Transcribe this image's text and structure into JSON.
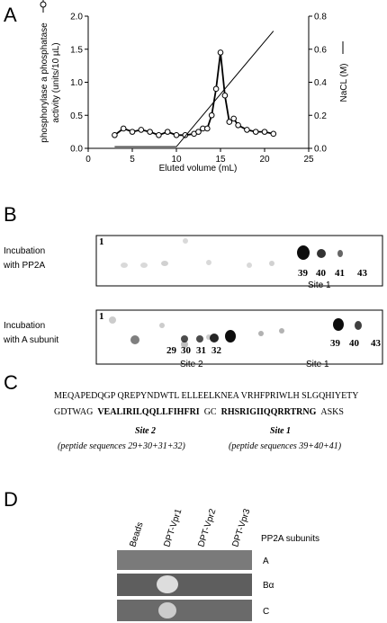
{
  "panel_labels": [
    "A",
    "B",
    "C",
    "D"
  ],
  "chart_data": {
    "type": "line",
    "x_label": "Eluted volume (mL)",
    "y_label": [
      "phosphorylase a phosphatase",
      "activity (units/10 µL)"
    ],
    "y2_label": "NaCL (M)",
    "xlim": [
      0,
      25
    ],
    "xticks": [
      0,
      5,
      10,
      15,
      20,
      25
    ],
    "ylim": [
      0,
      2
    ],
    "yticks": [
      {
        "value": 0,
        "label": "0.0"
      },
      0.5,
      {
        "value": 1,
        "label": "1.0"
      },
      1.5,
      {
        "value": 2,
        "label": "2.0"
      }
    ],
    "y2lim": [
      0,
      0.8
    ],
    "y2ticks": [
      {
        "value": 0,
        "label": "0.0"
      },
      0.2,
      0.4,
      0.6,
      0.8
    ],
    "series": [
      {
        "color": "#000000",
        "markers": true,
        "x": [
          3,
          4,
          5,
          6,
          7,
          8,
          9,
          10,
          11,
          12,
          12.5,
          13,
          13.5,
          14,
          14.5,
          15,
          15.5,
          16,
          16.5,
          17,
          18,
          19,
          20,
          21
        ],
        "values": [
          0.2,
          0.3,
          0.25,
          0.28,
          0.25,
          0.2,
          0.25,
          0.2,
          0.2,
          0.22,
          0.25,
          0.3,
          0.3,
          0.5,
          0.9,
          1.45,
          0.8,
          0.4,
          0.45,
          0.35,
          0.28,
          0.25,
          0.25,
          0.22
        ]
      },
      {
        "color": "#000000",
        "markers": false,
        "axis": "y2",
        "x": [
          3,
          10,
          21
        ],
        "values": [
          0.01,
          0.01,
          0.71
        ]
      }
    ]
  },
  "blot_b": {
    "rows": [
      {
        "label": [
          "Incubation",
          "with PP2A"
        ],
        "spots": [
          {
            "text": "1"
          },
          {
            "text": "39"
          },
          {
            "text": "40"
          },
          {
            "text": "41"
          },
          {
            "text": "43"
          },
          {
            "text": "Site 1"
          }
        ]
      },
      {
        "label": [
          "Incubation",
          "with A subunit"
        ],
        "spots": [
          {
            "text": "1"
          },
          {
            "text": "29"
          },
          {
            "text": "30"
          },
          {
            "text": "31"
          },
          {
            "text": "32"
          },
          {
            "text": "Site 2"
          },
          {
            "text": "39"
          },
          {
            "text": "40"
          },
          {
            "text": "43"
          },
          {
            "text": "Site 1"
          }
        ]
      }
    ]
  },
  "sequence": {
    "line1": "MEQAPEDQGP QREPYNDWTL ELLEELKNEA VRHFPRIWLH SLGQHIYETY",
    "line2": [
      {
        "text": "GDTWAG",
        "bold": false
      },
      {
        "text": "VEALIRILQQLLFIHFRI",
        "bold": true
      },
      {
        "text": "GC",
        "bold": false
      },
      {
        "text": "RHSRIGIIQQRRTRNG",
        "bold": true
      },
      {
        "text": "ASKS",
        "bold": false
      }
    ],
    "sites": [
      {
        "name": "Site 2",
        "note": "(peptide sequences 29+30+31+32)"
      },
      {
        "name": "Site 1",
        "note": "(peptide sequences 39+40+41)"
      }
    ]
  },
  "blot_d": {
    "columns": [
      "Beads",
      "DPT-Vpr1",
      "DPT-Vpr2",
      "DPT-Vpr3"
    ],
    "header": "PP2A subunits",
    "rows": [
      "A",
      "Bα",
      "C"
    ]
  }
}
